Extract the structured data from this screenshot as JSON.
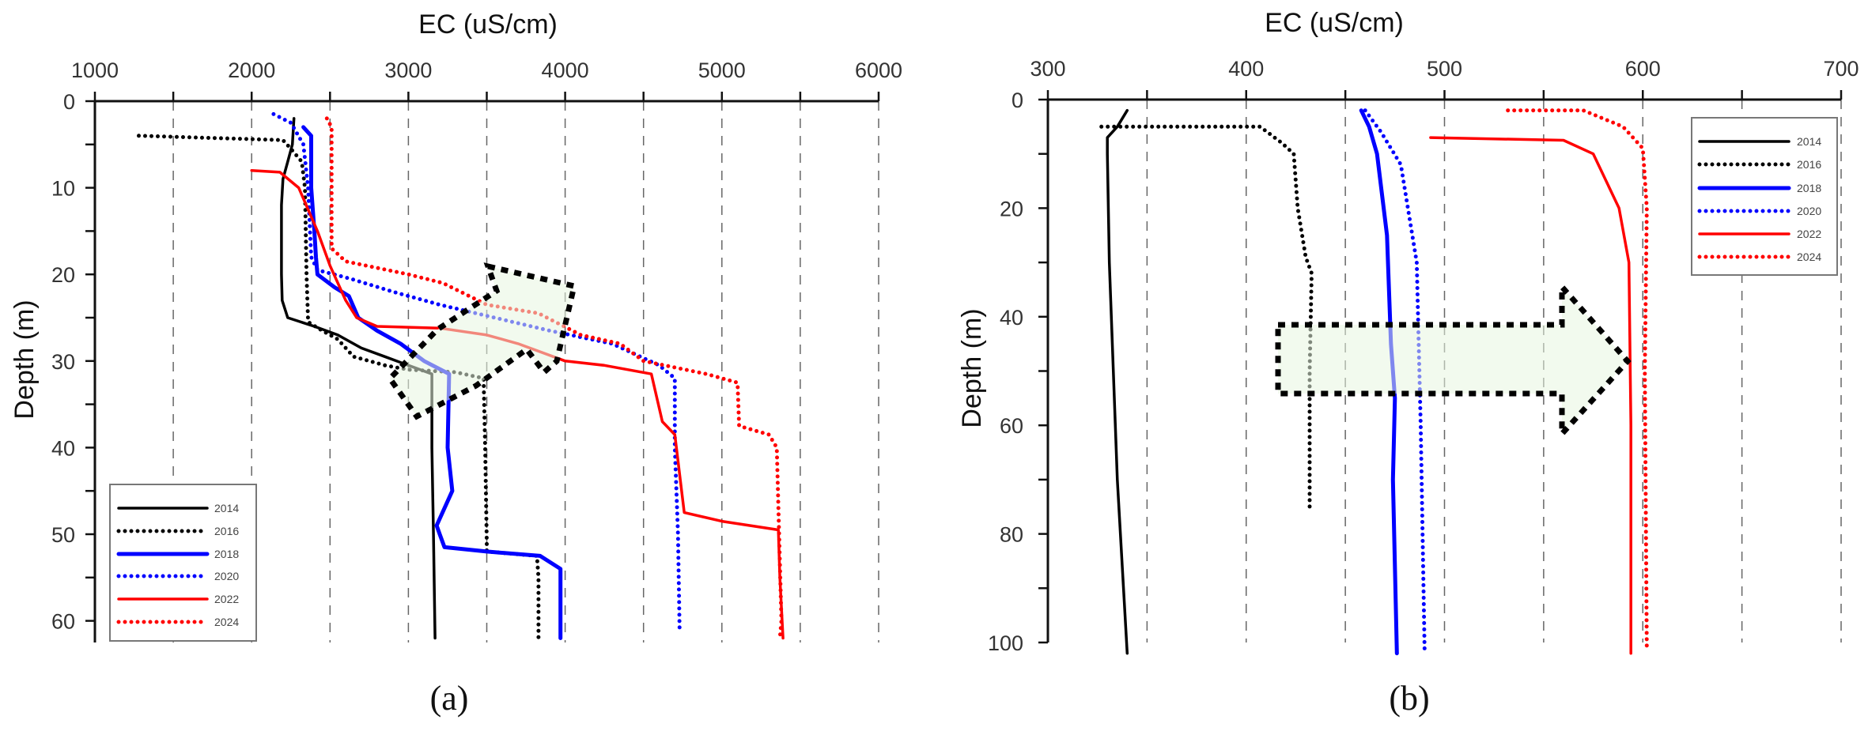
{
  "chart_data": [
    {
      "panel_label": "(a)",
      "type": "line",
      "xlabel": "EC (uS/cm)",
      "ylabel": "Depth (m)",
      "xlim": [
        1000,
        6000
      ],
      "ylim": [
        0,
        62.5
      ],
      "y_inverted": true,
      "x_axis_position": "top",
      "xticks": [
        1000,
        2000,
        3000,
        4000,
        5000,
        6000
      ],
      "yticks": [
        0,
        10,
        20,
        30,
        40,
        50,
        60
      ],
      "grid": "vertical dashed",
      "legend_position": "bottom-left",
      "annotation": "diagonal dashed arrow",
      "series": [
        {
          "name": "2014",
          "style": "solid",
          "color": "#000000",
          "points": [
            [
              2270,
              2
            ],
            [
              2260,
              5
            ],
            [
              2230,
              7
            ],
            [
              2200,
              9
            ],
            [
              2190,
              12
            ],
            [
              2190,
              20
            ],
            [
              2195,
              23
            ],
            [
              2230,
              25
            ],
            [
              2400,
              26
            ],
            [
              2550,
              27
            ],
            [
              2700,
              28.5
            ],
            [
              2850,
              29.5
            ],
            [
              3000,
              30.5
            ],
            [
              3150,
              31.5
            ],
            [
              3150,
              40
            ],
            [
              3160,
              50
            ],
            [
              3170,
              62
            ]
          ]
        },
        {
          "name": "2016",
          "style": "dotted",
          "color": "#000000",
          "points": [
            [
              1280,
              4
            ],
            [
              2200,
              4.5
            ],
            [
              2250,
              5.5
            ],
            [
              2320,
              7
            ],
            [
              2340,
              10
            ],
            [
              2350,
              20
            ],
            [
              2360,
              25.5
            ],
            [
              2450,
              26.5
            ],
            [
              2550,
              27.5
            ],
            [
              2650,
              29.5
            ],
            [
              2850,
              30.5
            ],
            [
              3000,
              31
            ],
            [
              3300,
              31.3
            ],
            [
              3480,
              32
            ],
            [
              3490,
              40
            ],
            [
              3500,
              51
            ],
            [
              3500,
              52
            ],
            [
              3820,
              52.5
            ],
            [
              3830,
              55
            ],
            [
              3830,
              62
            ]
          ]
        },
        {
          "name": "2018",
          "style": "solid-thick",
          "color": "#0000ff",
          "points": [
            [
              2330,
              3
            ],
            [
              2380,
              4
            ],
            [
              2380,
              10
            ],
            [
              2400,
              15
            ],
            [
              2410,
              18
            ],
            [
              2420,
              20
            ],
            [
              2530,
              21.5
            ],
            [
              2620,
              22.5
            ],
            [
              2680,
              25
            ],
            [
              2800,
              26.5
            ],
            [
              2950,
              28
            ],
            [
              3100,
              30
            ],
            [
              3260,
              31.5
            ],
            [
              3250,
              40
            ],
            [
              3280,
              45
            ],
            [
              3180,
              49
            ],
            [
              3200,
              50
            ],
            [
              3230,
              51.5
            ],
            [
              3500,
              52
            ],
            [
              3840,
              52.5
            ],
            [
              3970,
              54
            ],
            [
              3970,
              62
            ]
          ]
        },
        {
          "name": "2020",
          "style": "dotted",
          "color": "#0000ff",
          "points": [
            [
              2140,
              1.5
            ],
            [
              2250,
              2.5
            ],
            [
              2330,
              5
            ],
            [
              2360,
              10
            ],
            [
              2380,
              18
            ],
            [
              2420,
              19.5
            ],
            [
              2630,
              20.5
            ],
            [
              2900,
              22
            ],
            [
              3200,
              23.5
            ],
            [
              3550,
              25
            ],
            [
              3900,
              26.5
            ],
            [
              4300,
              28
            ],
            [
              4600,
              30.5
            ],
            [
              4700,
              32
            ],
            [
              4700,
              40
            ],
            [
              4720,
              50
            ],
            [
              4730,
              61
            ]
          ]
        },
        {
          "name": "2022",
          "style": "solid",
          "color": "#ff0000",
          "points": [
            [
              2000,
              8
            ],
            [
              2180,
              8.2
            ],
            [
              2300,
              10
            ],
            [
              2420,
              15
            ],
            [
              2500,
              19
            ],
            [
              2600,
              23
            ],
            [
              2670,
              25
            ],
            [
              2800,
              26
            ],
            [
              3200,
              26.2
            ],
            [
              3500,
              27
            ],
            [
              3700,
              28
            ],
            [
              4000,
              30
            ],
            [
              4250,
              30.5
            ],
            [
              4550,
              31.5
            ],
            [
              4620,
              37
            ],
            [
              4700,
              38.5
            ],
            [
              4760,
              47.5
            ],
            [
              5000,
              48.5
            ],
            [
              5360,
              49.5
            ],
            [
              5370,
              55
            ],
            [
              5390,
              62
            ]
          ]
        },
        {
          "name": "2024",
          "style": "dotted",
          "color": "#ff0000",
          "points": [
            [
              2480,
              2
            ],
            [
              2510,
              3
            ],
            [
              2510,
              17
            ],
            [
              2600,
              18.5
            ],
            [
              3000,
              20
            ],
            [
              3220,
              21
            ],
            [
              3500,
              23.5
            ],
            [
              3830,
              24.5
            ],
            [
              4100,
              27
            ],
            [
              4350,
              28
            ],
            [
              4500,
              30
            ],
            [
              4900,
              31.5
            ],
            [
              5100,
              32.5
            ],
            [
              5110,
              37.5
            ],
            [
              5300,
              38.5
            ],
            [
              5350,
              40
            ],
            [
              5380,
              60
            ],
            [
              5370,
              62
            ]
          ]
        }
      ]
    },
    {
      "panel_label": "(b)",
      "type": "line",
      "xlabel": "EC (uS/cm)",
      "ylabel": "Depth (m)",
      "xlim": [
        300,
        700
      ],
      "ylim": [
        0,
        100
      ],
      "y_inverted": true,
      "x_axis_position": "top",
      "xticks": [
        300,
        400,
        500,
        600,
        700
      ],
      "yticks": [
        0,
        20,
        40,
        60,
        80,
        100
      ],
      "grid": "vertical dashed",
      "legend_position": "top-right",
      "annotation": "horizontal dashed arrow pointing right",
      "series": [
        {
          "name": "2014",
          "style": "solid",
          "color": "#000000",
          "points": [
            [
              340,
              2
            ],
            [
              335,
              5
            ],
            [
              330,
              7
            ],
            [
              330,
              10
            ],
            [
              331,
              30
            ],
            [
              335,
              70
            ],
            [
              340,
              102
            ]
          ]
        },
        {
          "name": "2016",
          "style": "dotted",
          "color": "#000000",
          "points": [
            [
              327,
              5
            ],
            [
              407,
              5
            ],
            [
              418,
              8
            ],
            [
              424,
              10
            ],
            [
              426,
              20
            ],
            [
              430,
              29
            ],
            [
              433,
              32
            ],
            [
              432,
              50
            ],
            [
              432,
              75
            ]
          ]
        },
        {
          "name": "2018",
          "style": "solid-thick",
          "color": "#0000ff",
          "points": [
            [
              458,
              2
            ],
            [
              462,
              5
            ],
            [
              466,
              10
            ],
            [
              471,
              25
            ],
            [
              473,
              45
            ],
            [
              475,
              55
            ],
            [
              474,
              70
            ],
            [
              476,
              102
            ]
          ]
        },
        {
          "name": "2020",
          "style": "dotted",
          "color": "#0000ff",
          "points": [
            [
              460,
              2
            ],
            [
              468,
              6
            ],
            [
              478,
              12
            ],
            [
              486,
              30
            ],
            [
              488,
              60
            ],
            [
              490,
              102
            ]
          ]
        },
        {
          "name": "2022",
          "style": "solid",
          "color": "#ff0000",
          "points": [
            [
              493,
              7
            ],
            [
              560,
              7.5
            ],
            [
              575,
              10
            ],
            [
              588,
              20
            ],
            [
              593,
              30
            ],
            [
              594,
              60
            ],
            [
              594,
              102
            ]
          ]
        },
        {
          "name": "2024",
          "style": "dotted",
          "color": "#ff0000",
          "points": [
            [
              532,
              2
            ],
            [
              570,
              2
            ],
            [
              590,
              5
            ],
            [
              600,
              9
            ],
            [
              602,
              20
            ],
            [
              601,
              50
            ],
            [
              602,
              101
            ]
          ]
        }
      ]
    }
  ]
}
